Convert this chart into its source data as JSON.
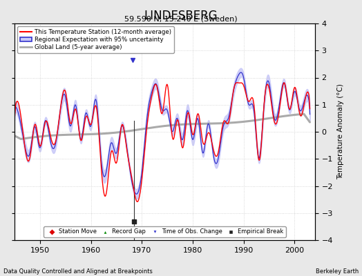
{
  "title": "LINDESBERG",
  "subtitle": "59.590 N, 15.240 E (Sweden)",
  "xlabel_left": "Data Quality Controlled and Aligned at Breakpoints",
  "xlabel_right": "Berkeley Earth",
  "ylabel": "Temperature Anomaly (°C)",
  "xlim": [
    1945,
    2004
  ],
  "ylim": [
    -4,
    4
  ],
  "yticks": [
    -4,
    -3,
    -2,
    -1,
    0,
    1,
    2,
    3,
    4
  ],
  "xticks": [
    1950,
    1960,
    1970,
    1980,
    1990,
    2000
  ],
  "background_color": "#e8e8e8",
  "plot_bg_color": "#ffffff",
  "grid_color": "#cccccc",
  "empirical_break_year": 1968.5,
  "empirical_break_value": -3.3,
  "time_of_obs_year": 1968.2,
  "time_of_obs_value": 2.65,
  "station_color": "#ff0000",
  "regional_color": "#3333cc",
  "regional_band_color": "#aaaaee",
  "global_color": "#aaaaaa",
  "legend_labels": [
    "This Temperature Station (12-month average)",
    "Regional Expectation with 95% uncertainty",
    "Global Land (5-year average)"
  ],
  "marker_legend": [
    {
      "label": "Station Move",
      "color": "#dd0000",
      "marker": "D"
    },
    {
      "label": "Record Gap",
      "color": "#008800",
      "marker": "^"
    },
    {
      "label": "Time of Obs. Change",
      "color": "#3333cc",
      "marker": "v"
    },
    {
      "label": "Empirical Break",
      "color": "#222222",
      "marker": "s"
    }
  ]
}
